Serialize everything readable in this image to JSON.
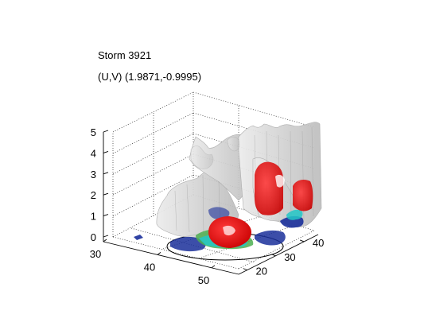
{
  "chart_data": {
    "type": "3d-isosurface",
    "title": "Storm 3921",
    "subtitle": "(U,V) (1.9871,-0.9995)",
    "axes": {
      "x": {
        "ticks": [
          30,
          40,
          50
        ],
        "range": [
          30,
          55
        ]
      },
      "y": {
        "ticks": [
          20,
          30,
          40
        ],
        "range": [
          17,
          45
        ]
      },
      "z": {
        "ticks": [
          0,
          1,
          2,
          3,
          4,
          5
        ],
        "range": [
          0,
          5
        ]
      }
    },
    "grid": true,
    "colors": {
      "surface": "#d9d9d9",
      "surface_edge": "#a8a8a8",
      "core": "#dd0000",
      "cyan": "#22c7c7",
      "green": "#4caf50",
      "blue": "#1a2f9a"
    }
  }
}
